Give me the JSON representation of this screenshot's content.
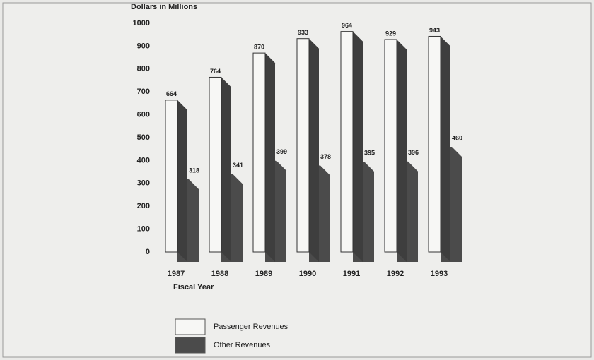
{
  "chart_data": {
    "type": "bar3d",
    "y_label": "Dollars in Millions",
    "x_label": "Fiscal Year",
    "categories": [
      "1987",
      "1988",
      "1989",
      "1990",
      "1991",
      "1992",
      "1993"
    ],
    "series": [
      {
        "name": "Passenger Revenues",
        "color": "#f7f7f5",
        "values": [
          664,
          764,
          870,
          933,
          964,
          929,
          943
        ]
      },
      {
        "name": "Other Revenues",
        "color": "#4b4b4b",
        "values": [
          318,
          341,
          399,
          378,
          395,
          396,
          460
        ]
      }
    ],
    "ylim": [
      0,
      1000
    ],
    "yticks": [
      0,
      100,
      200,
      300,
      400,
      500,
      600,
      700,
      800,
      900,
      1000
    ],
    "grid": false
  }
}
